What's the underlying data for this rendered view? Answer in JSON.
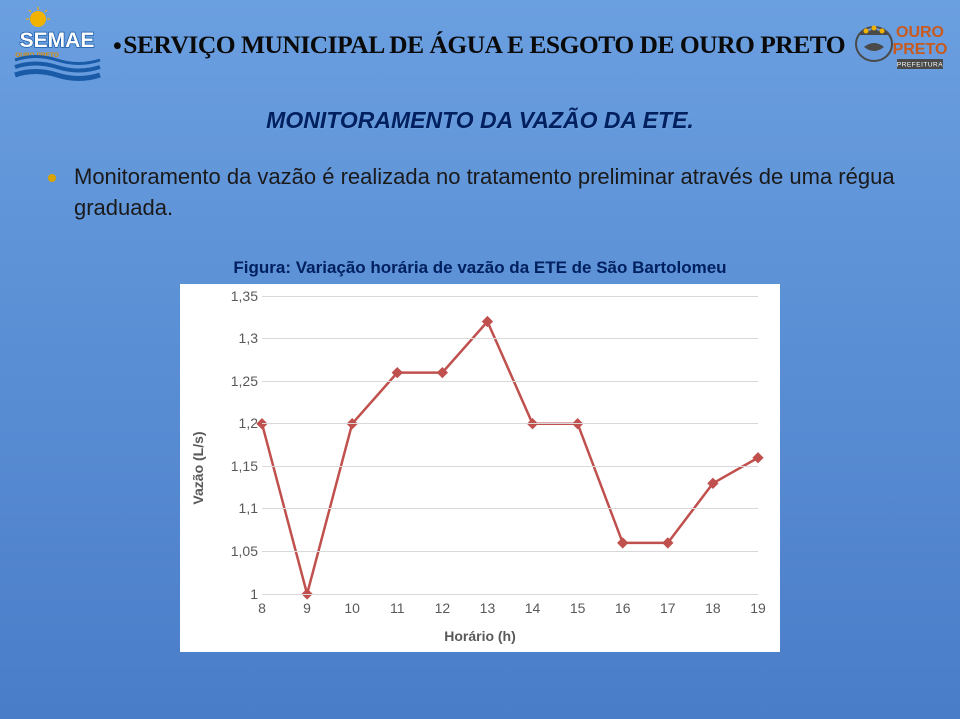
{
  "header": {
    "title": "SERVIÇO MUNICIPAL DE ÁGUA E ESGOTO DE OURO PRETO",
    "left_logo": {
      "text_top": "SEMAE",
      "text_sub": "OURO PRETO",
      "wave_color": "#1a5ba8",
      "sun_color": "#f2b200"
    },
    "right_logo": {
      "text_main": "OURO",
      "text_sub": "PRETO",
      "text_small": "PREFEITURA",
      "main_color": "#c85a1e",
      "crown_color": "#4a4a4a"
    }
  },
  "section_title": "MONITORAMENTO DA VAZÃO DA ETE.",
  "bullet_text": "Monitoramento da vazão é realizada no tratamento preliminar através de uma régua graduada.",
  "chart": {
    "caption": "Figura: Variação horária de vazão da ETE de São Bartolomeu",
    "type": "line",
    "x_label": "Horário (h)",
    "y_label": "Vazão (L/s)",
    "x_values": [
      8,
      9,
      10,
      11,
      12,
      13,
      14,
      15,
      16,
      17,
      18,
      19
    ],
    "y_ticks": [
      1,
      1.05,
      1.1,
      1.15,
      1.2,
      1.25,
      1.3,
      1.35
    ],
    "y_tick_labels": [
      "1",
      "1,05",
      "1,1",
      "1,15",
      "1,2",
      "1,25",
      "1,3",
      "1,35"
    ],
    "ylim": [
      1,
      1.35
    ],
    "xlim": [
      8,
      19
    ],
    "series": [
      {
        "x": 8,
        "y": 1.2
      },
      {
        "x": 9,
        "y": 1.0
      },
      {
        "x": 10,
        "y": 1.2
      },
      {
        "x": 11,
        "y": 1.26
      },
      {
        "x": 12,
        "y": 1.26
      },
      {
        "x": 13,
        "y": 1.32
      },
      {
        "x": 14,
        "y": 1.2
      },
      {
        "x": 15,
        "y": 1.2
      },
      {
        "x": 16,
        "y": 1.06
      },
      {
        "x": 17,
        "y": 1.06
      },
      {
        "x": 18,
        "y": 1.13
      },
      {
        "x": 19,
        "y": 1.16
      }
    ],
    "line_color": "#c0504d",
    "marker_color": "#c0504d",
    "marker_size": 8,
    "line_width": 2.5,
    "grid_color": "#d9d9d9",
    "background_color": "#ffffff",
    "tick_font_color": "#595959"
  }
}
